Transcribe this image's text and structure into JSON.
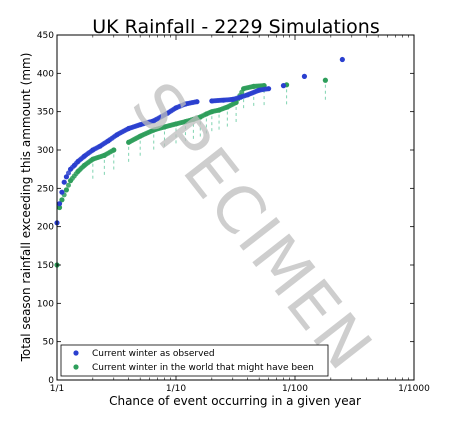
{
  "chart_data": {
    "type": "scatter",
    "title": "UK Rainfall - 2229 Simulations",
    "xlabel": "Chance of event occurring in a given year",
    "ylabel": "Total season rainfall exceeding this ammount (mm)",
    "x_scale": "log (return period, years)",
    "x_ticks": [
      1,
      10,
      100,
      1000
    ],
    "x_tick_labels": [
      "1/1",
      "1/10",
      "1/100",
      "1/1000"
    ],
    "xlim": [
      1,
      1000
    ],
    "ylim": [
      0,
      450
    ],
    "y_ticks": [
      0,
      50,
      100,
      150,
      200,
      250,
      300,
      350,
      400,
      450
    ],
    "grid": false,
    "legend_position": "lower left",
    "watermark": "SPECIMEN",
    "colors": {
      "observed": "#2a3fcf",
      "counterfactual": "#2e9e5b",
      "counterfactual_spread": "#7fd3b0"
    },
    "series": [
      {
        "name": "Current winter as observed",
        "color": "#2a3fcf",
        "x": [
          1.0,
          1.05,
          1.1,
          1.15,
          1.2,
          1.3,
          1.4,
          1.5,
          1.7,
          2.0,
          2.3,
          2.7,
          3.2,
          4.0,
          5.0,
          6.5,
          8.5,
          10,
          12,
          15,
          20,
          25,
          30,
          35,
          40,
          50,
          60,
          80,
          120,
          250
        ],
        "y": [
          205,
          230,
          245,
          258,
          265,
          275,
          280,
          285,
          292,
          300,
          305,
          312,
          320,
          328,
          333,
          338,
          348,
          355,
          360,
          363,
          364,
          365,
          366,
          369,
          372,
          378,
          380,
          384,
          396,
          418
        ]
      },
      {
        "name": "Current winter in the world that might have been",
        "color": "#2e9e5b",
        "x": [
          1.0,
          1.05,
          1.1,
          1.2,
          1.3,
          1.5,
          1.7,
          2.0,
          2.5,
          3.0,
          4.0,
          5.0,
          6.5,
          8.0,
          10,
          12,
          14,
          16,
          18,
          20,
          23,
          27,
          32,
          37,
          45,
          55,
          85,
          180
        ],
        "y": [
          150,
          225,
          235,
          248,
          260,
          272,
          280,
          288,
          293,
          300,
          310,
          318,
          326,
          330,
          334,
          337,
          340,
          343,
          347,
          350,
          352,
          356,
          362,
          380,
          383,
          384,
          385,
          391
        ]
      }
    ]
  }
}
